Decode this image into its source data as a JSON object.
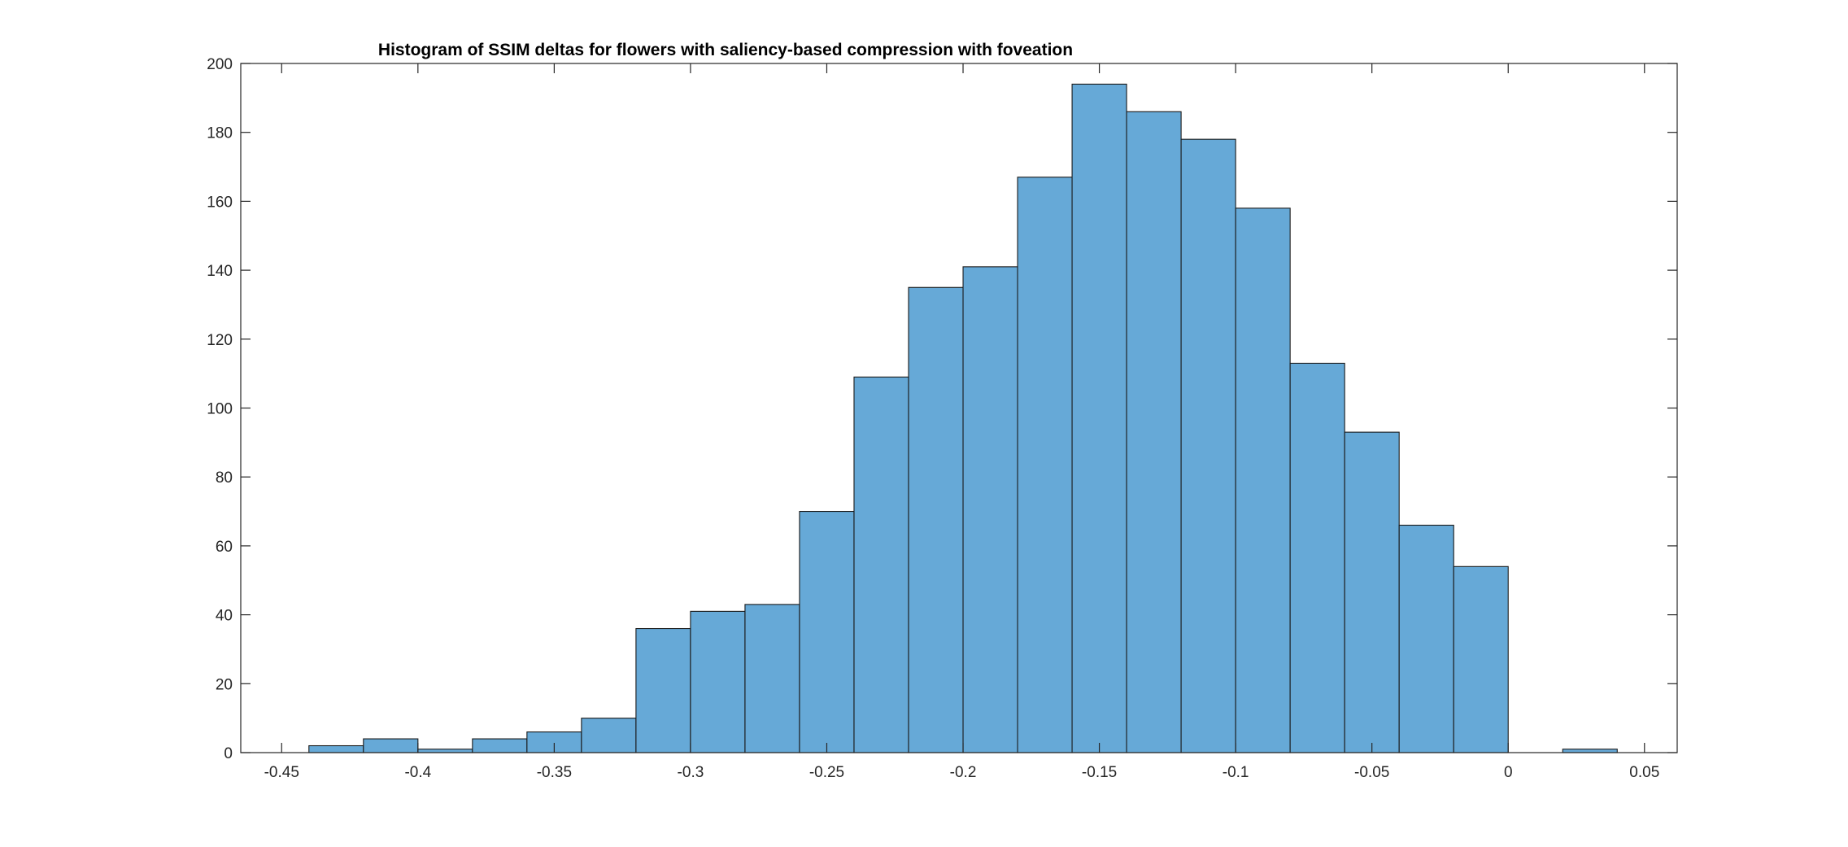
{
  "chart_data": {
    "type": "bar",
    "title": "Histogram of SSIM deltas for flowers with saliency-based compression with foveation",
    "xlabel": "",
    "ylabel": "",
    "xlim": [
      -0.465,
      0.062
    ],
    "ylim": [
      0,
      200
    ],
    "bin_width": 0.02,
    "bin_edges": [
      -0.44,
      -0.42,
      -0.4,
      -0.38,
      -0.36,
      -0.34,
      -0.32,
      -0.3,
      -0.28,
      -0.26,
      -0.24,
      -0.22,
      -0.2,
      -0.18,
      -0.16,
      -0.14,
      -0.12,
      -0.1,
      -0.08,
      -0.06,
      -0.04,
      -0.02,
      0.0,
      0.02,
      0.04
    ],
    "values": [
      2,
      4,
      1,
      4,
      6,
      10,
      36,
      41,
      43,
      70,
      109,
      135,
      141,
      167,
      194,
      186,
      178,
      158,
      113,
      93,
      66,
      54,
      0,
      1
    ],
    "x_ticks": [
      -0.45,
      -0.4,
      -0.35,
      -0.3,
      -0.25,
      -0.2,
      -0.15,
      -0.1,
      -0.05,
      0,
      0.05
    ],
    "x_tick_labels": [
      "-0.45",
      "-0.4",
      "-0.35",
      "-0.3",
      "-0.25",
      "-0.2",
      "-0.15",
      "-0.1",
      "-0.05",
      "0",
      "0.05"
    ],
    "y_ticks": [
      0,
      20,
      40,
      60,
      80,
      100,
      120,
      140,
      160,
      180,
      200
    ],
    "y_tick_labels": [
      "0",
      "20",
      "40",
      "60",
      "80",
      "100",
      "120",
      "140",
      "160",
      "180",
      "200"
    ],
    "grid": false,
    "legend": "none",
    "colors": {
      "bar_fill": "#66a9d7",
      "bar_edge": "#1a1a1a",
      "axis": "#262626",
      "background": "#ffffff"
    }
  }
}
